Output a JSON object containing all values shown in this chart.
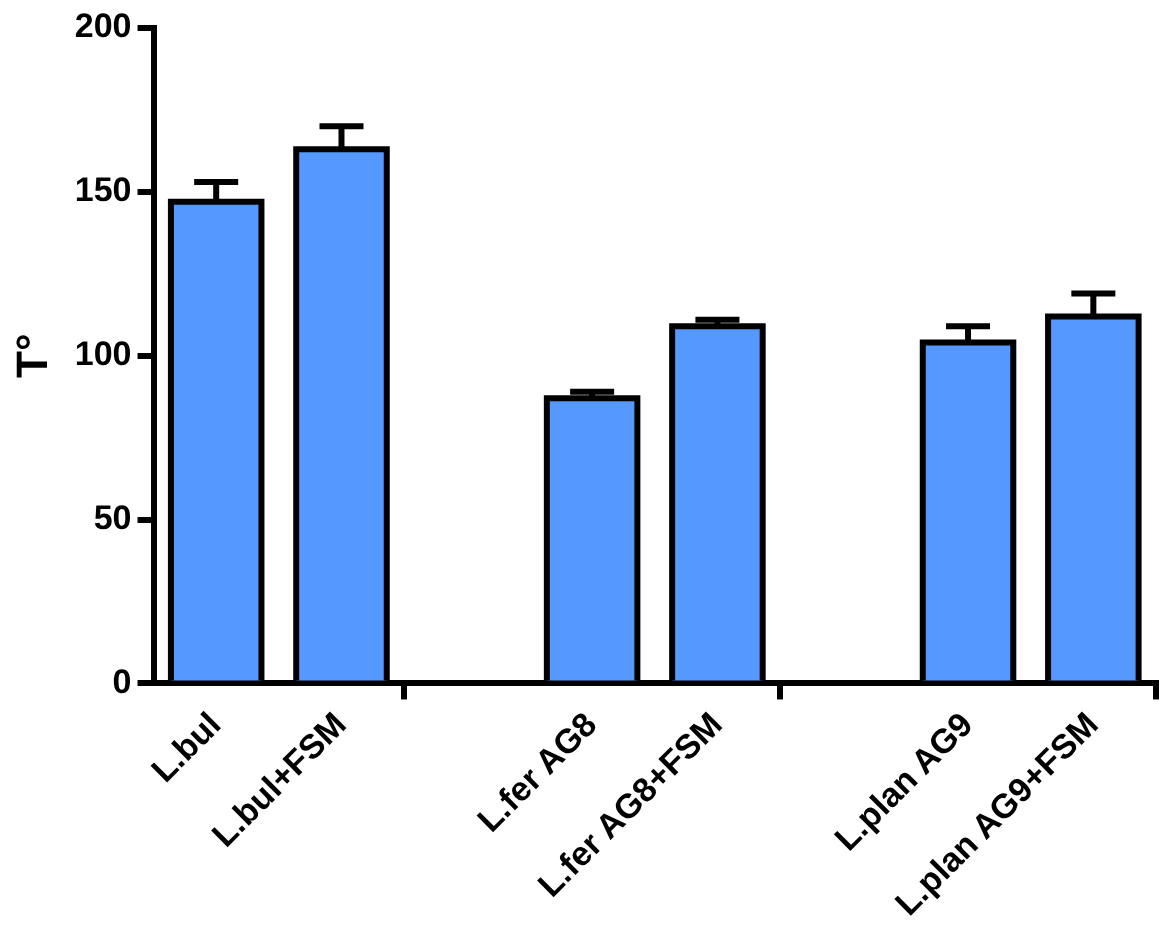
{
  "chart_data": {
    "type": "bar",
    "ylabel": "T°",
    "categories": [
      "L.bul",
      "L.bul+FSM",
      null,
      "L.fer AG8",
      "L.fer AG8+FSM",
      null,
      "L.plan AG9",
      "L.plan AG9+FSM"
    ],
    "values": [
      147,
      163,
      null,
      87,
      109,
      null,
      104,
      112
    ],
    "errors": [
      [
        147,
        153
      ],
      [
        163,
        170
      ],
      null,
      [
        87,
        89
      ],
      [
        109,
        111
      ],
      null,
      [
        104,
        109
      ],
      [
        112,
        119
      ]
    ],
    "color": "#5599ff",
    "ylim": [
      0,
      200
    ],
    "yticks": [
      0,
      50,
      100,
      150,
      200
    ],
    "grid": false,
    "legend": false
  }
}
